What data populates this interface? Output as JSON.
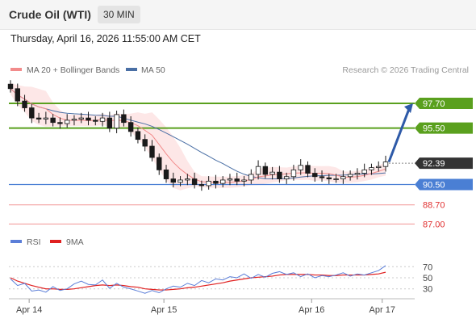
{
  "header": {
    "title": "Crude Oil (WTI)",
    "timeframe": "30 MIN"
  },
  "timestamp": "Thursday, April 16, 2026 11:55:00 AM CET",
  "colors": {
    "candle": "#1a1a1a",
    "ma20": "#f28b8b",
    "ma50": "#4a6fa5",
    "bb_fill": "#fde3e3",
    "resistance": "#5aa01e",
    "pivot": "#4a7fd4",
    "support": "#f2a0a0",
    "current": "#333333",
    "arrow": "#2e5aa8",
    "rsi": "#5b7ed8",
    "rsi_ma": "#e02020"
  },
  "chart_data": [
    {
      "type": "candlestick",
      "legend": [
        {
          "label": "MA 20 + Bollinger Bands",
          "color": "#f28b8b"
        },
        {
          "label": "MA 50",
          "color": "#4a6fa5"
        }
      ],
      "credit": "Research © 2026 Trading Central",
      "ylim": [
        86.1,
        99.7
      ],
      "levels": [
        {
          "value": 97.7,
          "label": "97.70",
          "kind": "resistance"
        },
        {
          "value": 95.5,
          "label": "95.50",
          "kind": "resistance"
        },
        {
          "value": 92.39,
          "label": "92.39",
          "kind": "current"
        },
        {
          "value": 90.5,
          "label": "90.50",
          "kind": "pivot"
        },
        {
          "value": 88.7,
          "label": "88.70",
          "kind": "support"
        },
        {
          "value": 87.0,
          "label": "87.00",
          "kind": "support"
        }
      ],
      "prices": [
        99.0,
        97.9,
        97.3,
        96.4,
        96.3,
        96.4,
        96.0,
        95.9,
        96.2,
        96.3,
        96.4,
        96.2,
        96.1,
        96.4,
        95.5,
        96.7,
        96.0,
        95.2,
        94.5,
        93.9,
        92.9,
        91.8,
        91.0,
        90.7,
        90.9,
        91.0,
        90.5,
        90.4,
        90.8,
        90.6,
        90.9,
        91.0,
        90.8,
        90.9,
        91.4,
        92.1,
        91.4,
        91.6,
        91.0,
        91.2,
        91.8,
        92.2,
        91.5,
        91.2,
        91.1,
        91.0,
        91.0,
        91.2,
        91.4,
        91.5,
        91.8,
        92.0,
        92.1,
        92.5
      ],
      "target": 97.7,
      "x_ticks": [
        {
          "label": "Apr 14",
          "pos": 0.05
        },
        {
          "label": "Apr 15",
          "pos": 0.382
        },
        {
          "label": "Apr 16",
          "pos": 0.746
        },
        {
          "label": "Apr 17",
          "pos": 0.92
        }
      ]
    },
    {
      "type": "line",
      "legend": [
        {
          "label": "RSI",
          "color": "#5b7ed8"
        },
        {
          "label": "9MA",
          "color": "#e02020"
        }
      ],
      "ylim": [
        15,
        85
      ],
      "y_ticks": [
        70,
        50,
        30
      ],
      "series": [
        {
          "name": "RSI",
          "values": [
            48,
            36,
            40,
            26,
            28,
            24,
            34,
            27,
            30,
            39,
            44,
            38,
            37,
            46,
            31,
            40,
            33,
            30,
            26,
            22,
            27,
            23,
            30,
            35,
            33,
            40,
            36,
            45,
            41,
            48,
            46,
            52,
            50,
            57,
            49,
            56,
            51,
            58,
            61,
            56,
            59,
            52,
            57,
            50,
            54,
            52,
            55,
            59,
            53,
            57,
            55,
            59,
            63,
            72
          ]
        },
        {
          "name": "9MA",
          "values": [
            50,
            44,
            40,
            36,
            33,
            30,
            30,
            29,
            29,
            30,
            32,
            34,
            36,
            37,
            36,
            37,
            36,
            34,
            33,
            30,
            29,
            28,
            28,
            29,
            30,
            32,
            33,
            35,
            37,
            39,
            41,
            44,
            46,
            48,
            50,
            51,
            52,
            53,
            55,
            56,
            56,
            56,
            56,
            55,
            55,
            54,
            54,
            55,
            55,
            55,
            55,
            56,
            57,
            60
          ]
        }
      ]
    }
  ]
}
